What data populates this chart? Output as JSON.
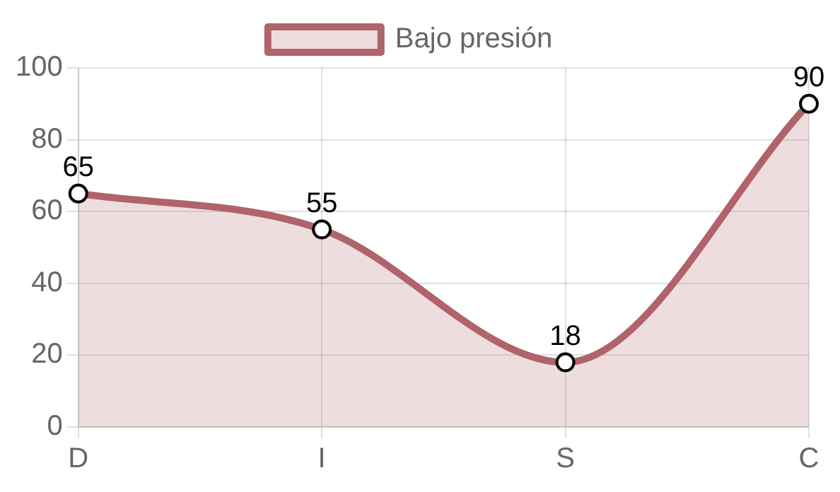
{
  "chart_data": {
    "type": "area",
    "categories": [
      "D",
      "I",
      "S",
      "C"
    ],
    "series": [
      {
        "name": "Bajo presión",
        "color": "#b0636b",
        "values": [
          65,
          55,
          18,
          90
        ]
      }
    ],
    "ylim": [
      0,
      100
    ],
    "yticks": [
      0,
      20,
      40,
      60,
      80,
      100
    ],
    "grid": true,
    "legend": "top",
    "marker": "circle",
    "data_labels": true
  }
}
